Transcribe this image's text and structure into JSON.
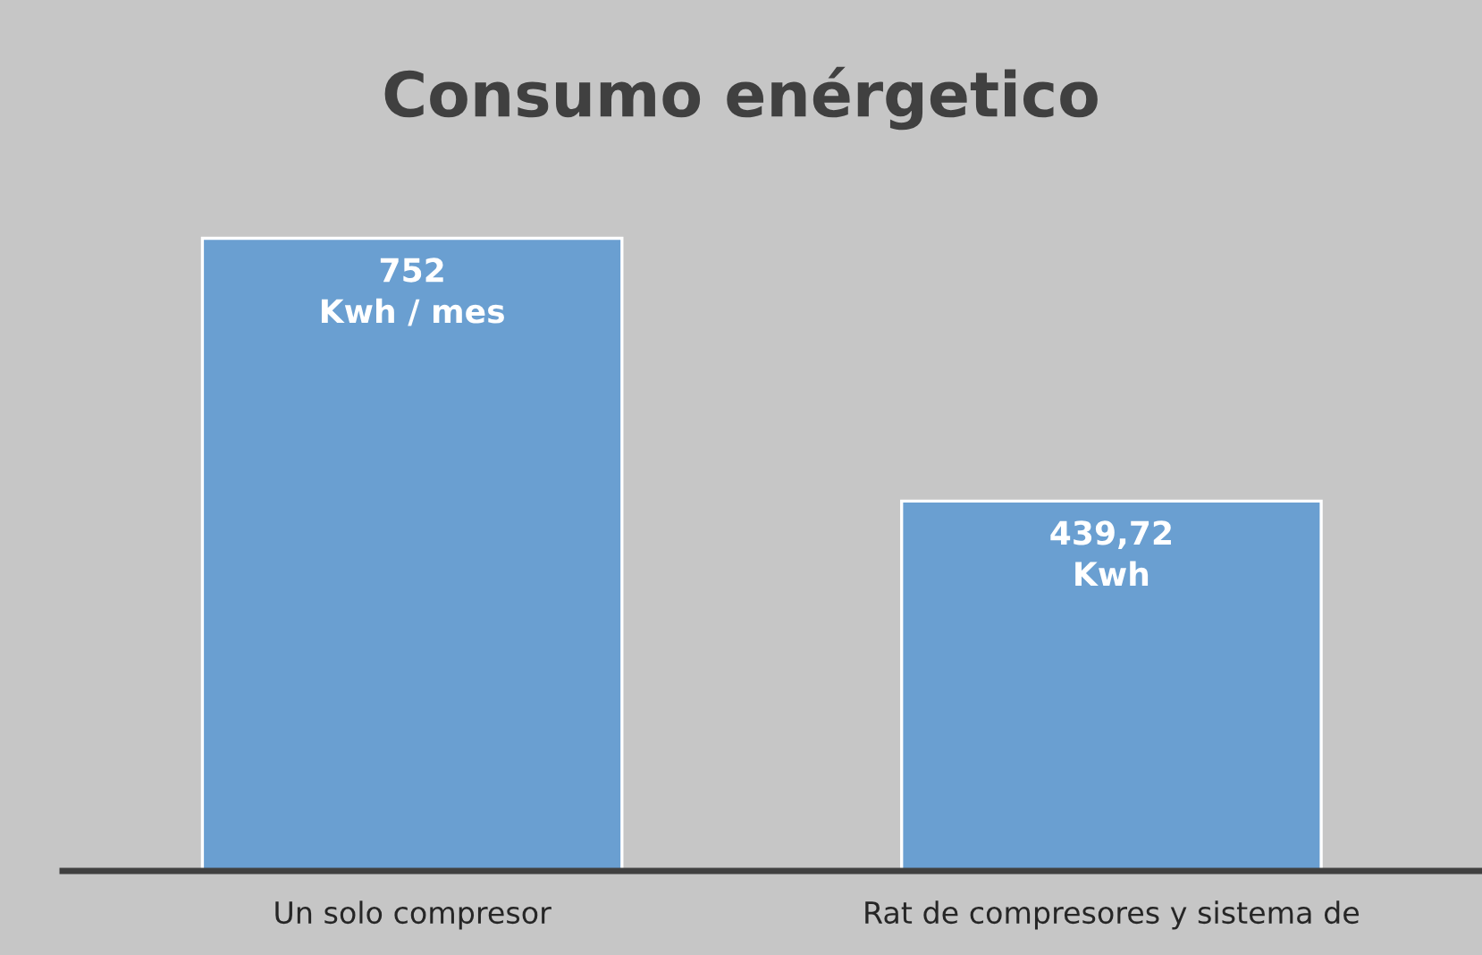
{
  "chart_data": {
    "type": "bar",
    "title": "Consumo enérgetico",
    "categories": [
      "Un solo compresor",
      "Rat de compresores y sistema de"
    ],
    "values": [
      752,
      439.72
    ],
    "value_labels": [
      "752\nKwh / mes",
      "439,72\nKwh"
    ],
    "color": "#6a9fd1",
    "grid": false,
    "legend": false
  }
}
